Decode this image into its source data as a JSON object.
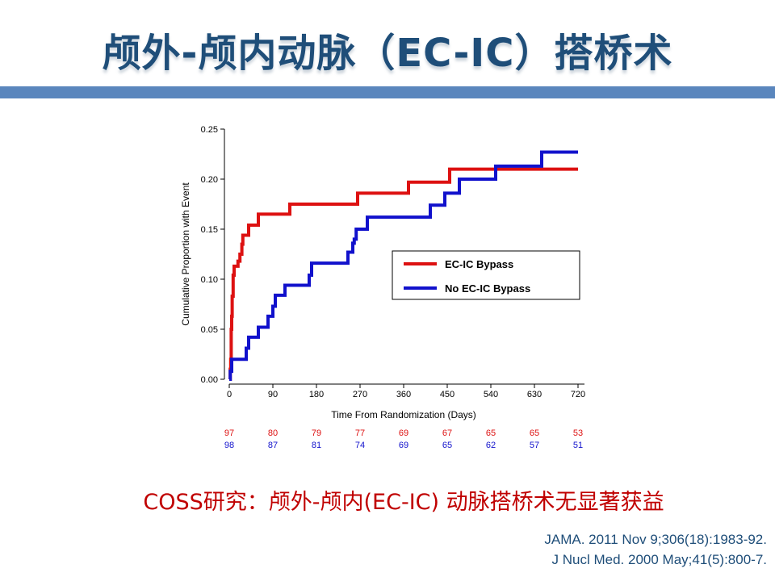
{
  "slide": {
    "title": "颅外-颅内动脉（EC-IC）搭桥术",
    "caption": "COSS研究：颅外-颅内(EC-IC) 动脉搭桥术无显著获益",
    "citations": [
      "JAMA. 2011 Nov 9;306(18):1983-92.",
      "J Nucl Med. 2000 May;41(5):800-7."
    ]
  },
  "chart_data": {
    "type": "line",
    "step": true,
    "xlabel": "Time From Randomization (Days)",
    "ylabel": "Cumulative Proportion with Event",
    "xlim": [
      0,
      720
    ],
    "ylim": [
      0,
      0.25
    ],
    "xticks": [
      "0",
      "90",
      "180",
      "270",
      "360",
      "450",
      "540",
      "630",
      "720"
    ],
    "yticks": [
      "0.00",
      "0.05",
      "0.10",
      "0.15",
      "0.20",
      "0.25"
    ],
    "legend_position": "center-right",
    "series": [
      {
        "name": "EC-IC Bypass",
        "color": "#dd1111",
        "points": [
          [
            0,
            0
          ],
          [
            2,
            0.01
          ],
          [
            3,
            0.02
          ],
          [
            4,
            0.05
          ],
          [
            5,
            0.063
          ],
          [
            6,
            0.083
          ],
          [
            8,
            0.104
          ],
          [
            10,
            0.113
          ],
          [
            18,
            0.118
          ],
          [
            22,
            0.125
          ],
          [
            26,
            0.135
          ],
          [
            28,
            0.144
          ],
          [
            40,
            0.154
          ],
          [
            60,
            0.165
          ],
          [
            125,
            0.175
          ],
          [
            265,
            0.186
          ],
          [
            370,
            0.197
          ],
          [
            455,
            0.21
          ],
          [
            720,
            0.21
          ]
        ],
        "at_risk": [
          97,
          80,
          79,
          77,
          69,
          67,
          65,
          65,
          53
        ]
      },
      {
        "name": "No EC-IC Bypass",
        "color": "#1111cc",
        "points": [
          [
            0,
            0
          ],
          [
            2,
            0.008
          ],
          [
            5,
            0.02
          ],
          [
            35,
            0.031
          ],
          [
            40,
            0.042
          ],
          [
            60,
            0.052
          ],
          [
            80,
            0.063
          ],
          [
            90,
            0.073
          ],
          [
            95,
            0.084
          ],
          [
            115,
            0.094
          ],
          [
            165,
            0.104
          ],
          [
            170,
            0.116
          ],
          [
            245,
            0.127
          ],
          [
            255,
            0.136
          ],
          [
            258,
            0.14
          ],
          [
            262,
            0.15
          ],
          [
            285,
            0.162
          ],
          [
            415,
            0.174
          ],
          [
            445,
            0.186
          ],
          [
            475,
            0.2
          ],
          [
            550,
            0.213
          ],
          [
            645,
            0.227
          ],
          [
            720,
            0.227
          ]
        ],
        "at_risk": [
          98,
          87,
          81,
          74,
          69,
          65,
          62,
          57,
          51
        ]
      }
    ]
  }
}
